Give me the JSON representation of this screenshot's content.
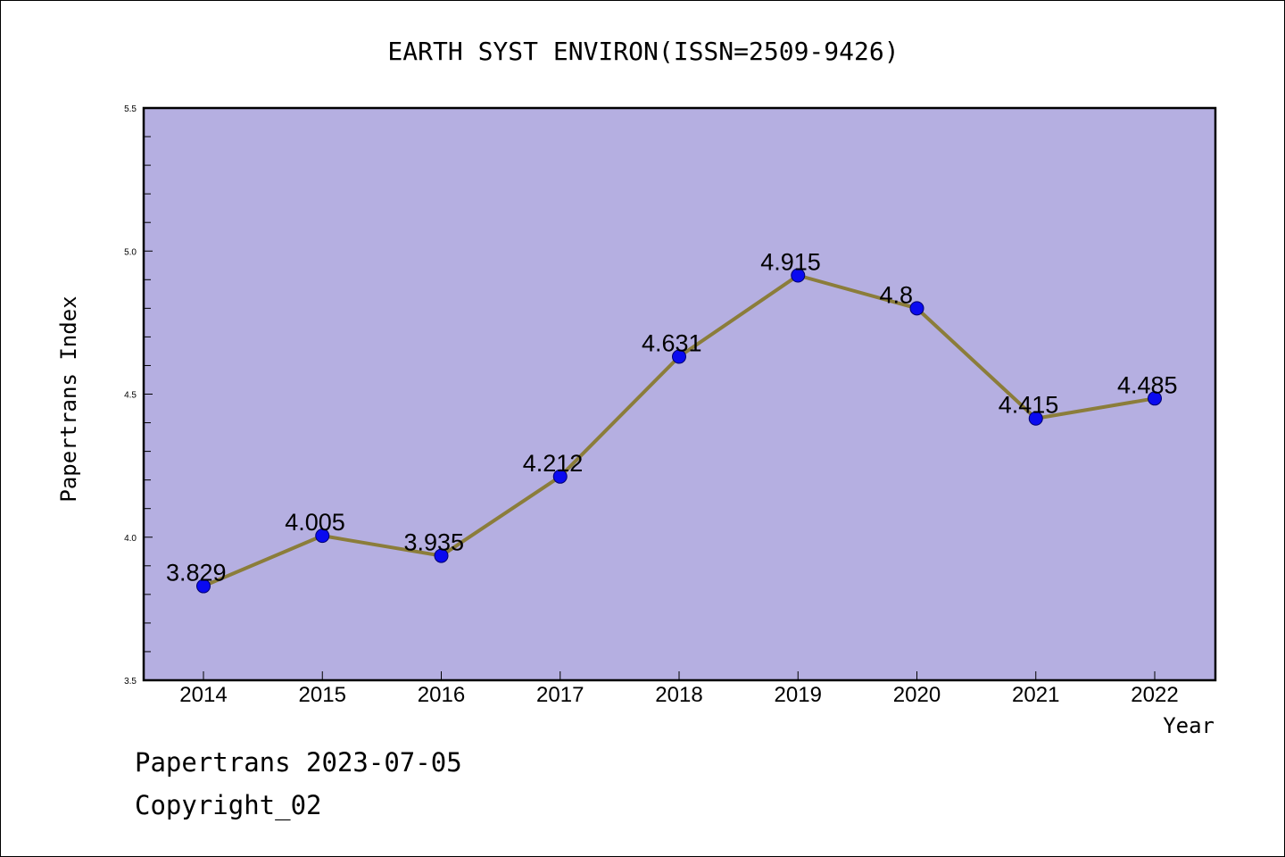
{
  "colors": {
    "plot_bg": "#b5afe1",
    "line": "#8b7d3a",
    "marker": "#0a0af0",
    "axis": "#000000"
  },
  "footer": {
    "line1": "Papertrans 2023-07-05",
    "line2": "Copyright_02"
  },
  "chart_data": {
    "type": "line",
    "title": "EARTH SYST ENVIRON(ISSN=2509-9426)",
    "xlabel": "Year",
    "ylabel": "Papertrans Index",
    "x": [
      "2014",
      "2015",
      "2016",
      "2017",
      "2018",
      "2019",
      "2020",
      "2021",
      "2022"
    ],
    "series": [
      {
        "values": [
          3.829,
          4.005,
          3.935,
          4.212,
          4.631,
          4.915,
          4.8,
          4.415,
          4.485
        ]
      }
    ],
    "data_labels": [
      "3.829",
      "4.005",
      "3.935",
      "4.212",
      "4.631",
      "4.915",
      "4.8",
      "4.415",
      "4.485"
    ],
    "ylim": [
      3.5,
      5.5
    ],
    "yticks": [
      "3.5",
      "4.0",
      "4.5",
      "5.0",
      "5.5"
    ],
    "grid": false,
    "legend": "none"
  }
}
